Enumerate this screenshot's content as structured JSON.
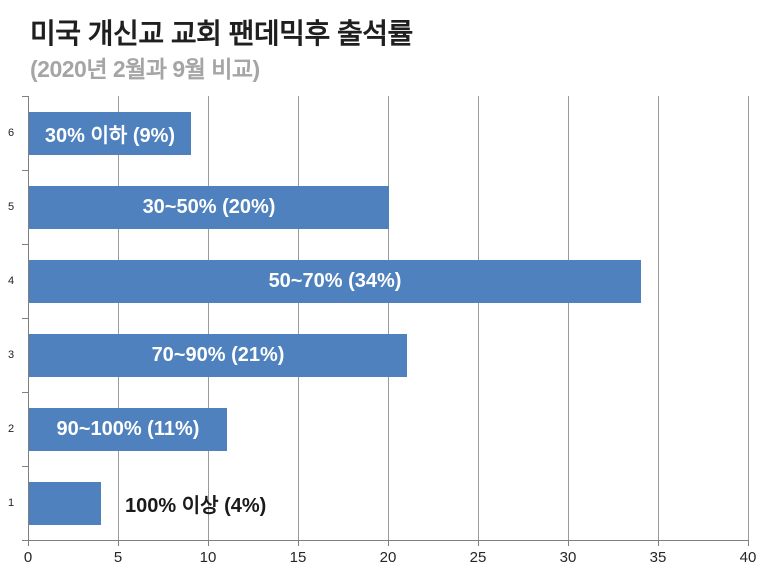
{
  "header": {
    "title": "미국 개신교 교회 팬데믹후 출석률",
    "subtitle": "(2020년 2월과 9월 비교)"
  },
  "colors": {
    "bar": "#4e81bd",
    "gridline": "#9b9b9b",
    "axis": "#808080",
    "title_text": "#1f1f1f",
    "subtitle_text": "#a5a5a5",
    "bar_label_inside": "#ffffff",
    "bar_label_outside": "#1a1a1a",
    "tick_label": "#262626"
  },
  "chart_data": {
    "type": "bar",
    "orientation": "horizontal",
    "title": "미국 개신교 교회 팬데믹후 출석률",
    "subtitle": "(2020년 2월과 9월 비교)",
    "categories": [
      "6",
      "5",
      "4",
      "3",
      "2",
      "1"
    ],
    "values": [
      9,
      20,
      34,
      21,
      11,
      4
    ],
    "bar_labels": [
      "30% 이하 (9%)",
      "30~50% (20%)",
      "50~70% (34%)",
      "70~90% (21%)",
      "90~100% (11%)",
      "100% 이상 (4%)"
    ],
    "label_placement": [
      "inside",
      "inside",
      "inside",
      "inside",
      "inside",
      "outside"
    ],
    "xlabel": "",
    "ylabel": "",
    "xlim": [
      0,
      40
    ],
    "x_ticks": [
      "0",
      "5",
      "10",
      "15",
      "20",
      "25",
      "30",
      "35",
      "40"
    ],
    "grid": "vertical",
    "legend_position": "none"
  }
}
